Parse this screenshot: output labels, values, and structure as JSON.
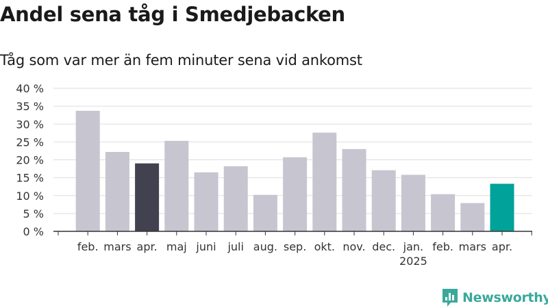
{
  "header": {
    "title": "Andel sena tåg i Smedjebacken",
    "subtitle": "Tåg som var mer än fem minuter sena vid ankomst"
  },
  "brand": {
    "name": "Newsworthy"
  },
  "colors": {
    "default_bar": "#c6c5d0",
    "highlight_bar": "#42414f",
    "current_bar": "#00a29a",
    "grid": "#dddddd",
    "axis": "#333333",
    "brand": "#3aa89a"
  },
  "chart_data": {
    "type": "bar",
    "title": "Andel sena tåg i Smedjebacken",
    "subtitle": "Tåg som var mer än fem minuter sena vid ankomst",
    "xlabel": "",
    "ylabel": "",
    "categories": [
      "feb.",
      "mars",
      "apr.",
      "maj",
      "juni",
      "juli",
      "aug.",
      "sep.",
      "okt.",
      "nov.",
      "dec.",
      "jan.",
      "feb.",
      "mars",
      "apr."
    ],
    "year_labels": [
      {
        "category_index": 11,
        "label": "2025"
      }
    ],
    "values": [
      33.7,
      22.2,
      19.0,
      25.3,
      16.5,
      18.2,
      10.2,
      20.7,
      27.6,
      23.0,
      17.1,
      15.8,
      10.4,
      7.9,
      13.3
    ],
    "bar_colors": [
      "default_bar",
      "default_bar",
      "highlight_bar",
      "default_bar",
      "default_bar",
      "default_bar",
      "default_bar",
      "default_bar",
      "default_bar",
      "default_bar",
      "default_bar",
      "default_bar",
      "default_bar",
      "default_bar",
      "current_bar"
    ],
    "y_ticks": [
      "0 %",
      "5 %",
      "10 %",
      "15 %",
      "20 %",
      "25 %",
      "30 %",
      "35 %",
      "40 %"
    ],
    "ylim": [
      0,
      40
    ],
    "grid": true,
    "legend": false
  }
}
